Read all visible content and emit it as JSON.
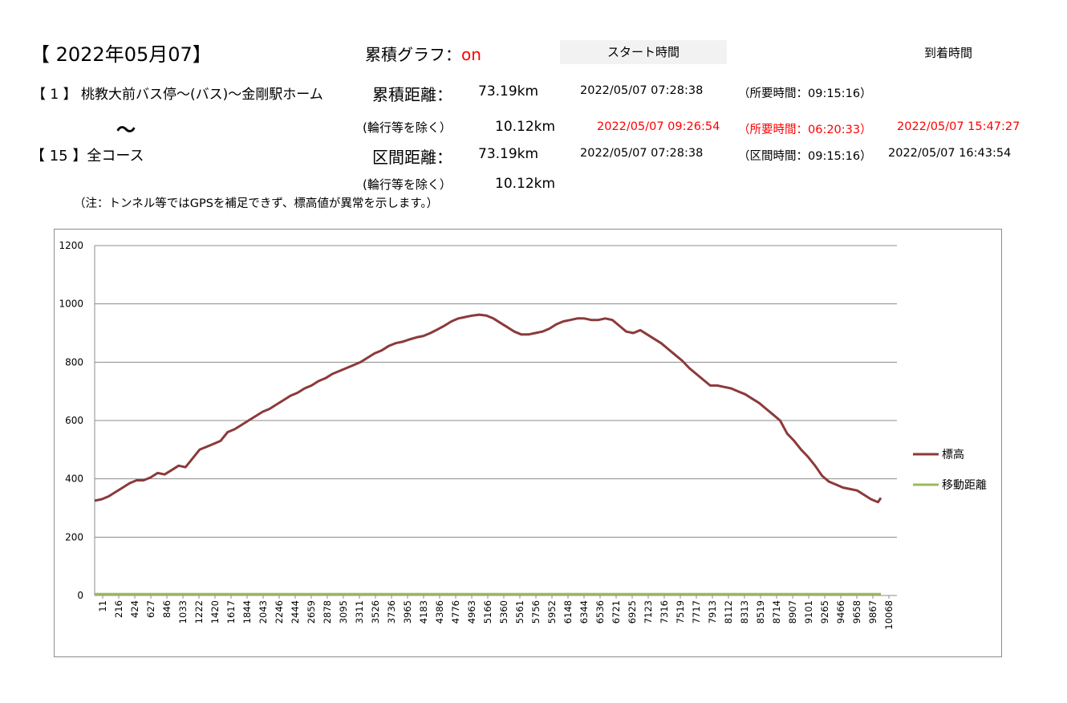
{
  "header": {
    "date_title": "【 2022年05月07】",
    "route_start": "【 1 】 桃教大前バス停～(バス)～金剛駅ホーム",
    "tilde": "～",
    "route_end": "【 15 】全コース",
    "note": "（注：トンネル等ではGPSを補足できず、標高値が異常を示します。）",
    "graph_label": "累積グラフ：",
    "graph_value": "on",
    "start_time_header": "スタート時間",
    "arrival_time_header": "到着時間"
  },
  "stats": {
    "cumulative_distance_label": "累積距離：",
    "cumulative_distance": "73.19km",
    "cumulative_start": "2022/05/07 07:28:38",
    "cumulative_required": "（所要時間：09:15:16）",
    "excl_label_1": "(輪行等を除く）",
    "excl_distance_1": "10.12km",
    "excl_start_1": "2022/05/07 09:26:54",
    "excl_required_1": "（所要時間：06:20:33）",
    "excl_arrival_1": "2022/05/07 15:47:27",
    "section_distance_label": "区間距離：",
    "section_distance": "73.19km",
    "section_start": "2022/05/07 07:28:38",
    "section_time": "（区間時間：09:15:16）",
    "section_arrival": "2022/05/07 16:43:54",
    "excl_label_2": "(輪行等を除く）",
    "excl_distance_2": "10.12km"
  },
  "colors": {
    "elevation": "#8b3a3a",
    "distance": "#9bbb59",
    "red_text": "#ff0000",
    "grid": "#8c8c8c"
  },
  "chart_data": {
    "type": "line",
    "ylim": [
      0,
      1200
    ],
    "yticks": [
      0,
      200,
      400,
      600,
      800,
      1000,
      1200
    ],
    "grid": true,
    "legend_position": "right",
    "x_tick_labels": [
      "11",
      "216",
      "424",
      "627",
      "846",
      "1033",
      "1222",
      "1420",
      "1617",
      "1844",
      "2043",
      "2246",
      "2444",
      "2659",
      "2878",
      "3095",
      "3311",
      "3526",
      "3736",
      "3965",
      "4183",
      "4386",
      "4776",
      "4963",
      "5166",
      "5360",
      "5561",
      "5756",
      "5952",
      "6148",
      "6344",
      "6536",
      "6721",
      "6925",
      "7123",
      "7316",
      "7519",
      "7717",
      "7913",
      "8112",
      "8313",
      "8519",
      "8714",
      "8907",
      "9101",
      "9265",
      "9466",
      "9658",
      "9867",
      "10068"
    ],
    "series": [
      {
        "name": "標高",
        "points": [
          [
            0,
            325
          ],
          [
            0.5,
            330
          ],
          [
            1,
            340
          ],
          [
            1.5,
            355
          ],
          [
            2,
            370
          ],
          [
            2.5,
            385
          ],
          [
            3,
            395
          ],
          [
            3.5,
            395
          ],
          [
            4,
            405
          ],
          [
            4.5,
            420
          ],
          [
            5,
            415
          ],
          [
            5.5,
            430
          ],
          [
            6,
            445
          ],
          [
            6.5,
            440
          ],
          [
            7,
            470
          ],
          [
            7.5,
            500
          ],
          [
            8,
            510
          ],
          [
            8.5,
            520
          ],
          [
            9,
            530
          ],
          [
            9.5,
            560
          ],
          [
            10,
            570
          ],
          [
            10.5,
            585
          ],
          [
            11,
            600
          ],
          [
            11.5,
            615
          ],
          [
            12,
            630
          ],
          [
            12.5,
            640
          ],
          [
            13,
            655
          ],
          [
            13.5,
            670
          ],
          [
            14,
            685
          ],
          [
            14.5,
            695
          ],
          [
            15,
            710
          ],
          [
            15.5,
            720
          ],
          [
            16,
            735
          ],
          [
            16.5,
            745
          ],
          [
            17,
            760
          ],
          [
            17.5,
            770
          ],
          [
            18,
            780
          ],
          [
            18.5,
            790
          ],
          [
            19,
            800
          ],
          [
            19.5,
            815
          ],
          [
            20,
            830
          ],
          [
            20.5,
            840
          ],
          [
            21,
            855
          ],
          [
            21.5,
            865
          ],
          [
            22,
            870
          ],
          [
            22.5,
            878
          ],
          [
            23,
            885
          ],
          [
            23.5,
            890
          ],
          [
            24,
            900
          ],
          [
            24.5,
            912
          ],
          [
            25,
            925
          ],
          [
            25.5,
            940
          ],
          [
            26,
            950
          ],
          [
            26.5,
            955
          ],
          [
            27,
            960
          ],
          [
            27.5,
            963
          ],
          [
            28,
            960
          ],
          [
            28.5,
            950
          ],
          [
            29,
            935
          ],
          [
            29.5,
            920
          ],
          [
            30,
            905
          ],
          [
            30.5,
            895
          ],
          [
            31,
            895
          ],
          [
            31.5,
            900
          ],
          [
            32,
            905
          ],
          [
            32.5,
            915
          ],
          [
            33,
            930
          ],
          [
            33.5,
            940
          ],
          [
            34,
            945
          ],
          [
            34.5,
            950
          ],
          [
            35,
            950
          ],
          [
            35.5,
            945
          ],
          [
            36,
            945
          ],
          [
            36.5,
            950
          ],
          [
            37,
            945
          ],
          [
            37.5,
            925
          ],
          [
            38,
            905
          ],
          [
            38.5,
            900
          ],
          [
            39,
            910
          ],
          [
            39.5,
            895
          ],
          [
            40,
            880
          ],
          [
            40.5,
            865
          ],
          [
            41,
            845
          ],
          [
            41.5,
            825
          ],
          [
            42,
            805
          ],
          [
            42.5,
            780
          ],
          [
            43,
            760
          ],
          [
            43.5,
            740
          ],
          [
            44,
            720
          ],
          [
            44.5,
            720
          ],
          [
            45,
            715
          ],
          [
            45.5,
            710
          ],
          [
            46,
            700
          ],
          [
            46.5,
            690
          ],
          [
            47,
            675
          ],
          [
            47.5,
            660
          ],
          [
            48,
            640
          ],
          [
            48.5,
            620
          ],
          [
            49,
            600
          ],
          [
            49.5,
            555
          ],
          [
            50,
            530
          ],
          [
            50.5,
            500
          ],
          [
            51,
            475
          ],
          [
            51.5,
            445
          ],
          [
            52,
            410
          ],
          [
            52.5,
            390
          ],
          [
            53,
            380
          ],
          [
            53.5,
            370
          ],
          [
            54,
            365
          ],
          [
            54.5,
            360
          ],
          [
            55,
            345
          ],
          [
            55.5,
            330
          ],
          [
            56,
            320
          ],
          [
            56.2,
            335
          ]
        ]
      },
      {
        "name": "移動距離",
        "points": [
          [
            0,
            5
          ],
          [
            10,
            5
          ],
          [
            20,
            5
          ],
          [
            30,
            5
          ],
          [
            40,
            5
          ],
          [
            50,
            5
          ],
          [
            56.2,
            5
          ]
        ]
      }
    ]
  }
}
